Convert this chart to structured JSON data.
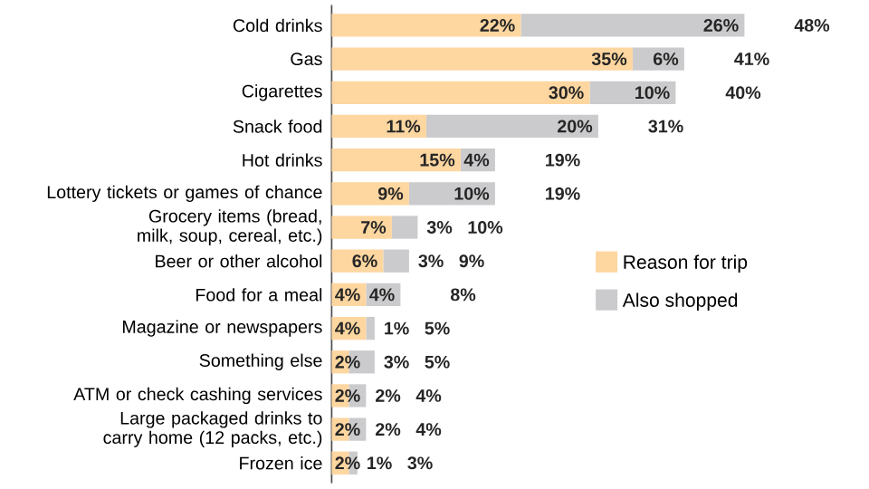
{
  "chart_data": {
    "type": "bar",
    "orientation": "horizontal",
    "stacked": true,
    "categories": [
      "Cold drinks",
      "Gas",
      "Cigarettes",
      "Snack food",
      "Hot drinks",
      "Lottery tickets or games of chance",
      "Grocery items (bread, milk, soup, cereal, etc.)",
      "Beer or other alcohol",
      "Food for a meal",
      "Magazine or newspapers",
      "Something else",
      "ATM or check cashing services",
      "Large packaged drinks to carry home (12 packs, etc.)",
      "Frozen ice"
    ],
    "series": [
      {
        "name": "Reason for trip",
        "color": "#fdd6a0",
        "values": [
          22,
          35,
          30,
          11,
          15,
          9,
          7,
          6,
          4,
          4,
          2,
          2,
          2,
          2
        ],
        "value_labels": [
          "22%",
          "35%",
          "30%",
          "11%",
          "15%",
          "9%",
          "7%",
          "6%",
          "4%",
          "4%",
          "2%",
          "2%",
          "2%",
          "2%"
        ]
      },
      {
        "name": "Also shopped",
        "color": "#cbcbcd",
        "values": [
          26,
          6,
          10,
          20,
          4,
          10,
          3,
          3,
          4,
          1,
          3,
          2,
          2,
          1
        ],
        "value_labels": [
          "26%",
          "6%",
          "10%",
          "20%",
          "4%",
          "10%",
          "3%",
          "3%",
          "4%",
          "1%",
          "3%",
          "2%",
          "2%",
          "1%"
        ]
      }
    ],
    "totals": [
      "48%",
      "41%",
      "40%",
      "31%",
      "19%",
      "19%",
      "10%",
      "9%",
      "8%",
      "5%",
      "5%",
      "4%",
      "4%",
      "3%"
    ],
    "legend": "right"
  }
}
